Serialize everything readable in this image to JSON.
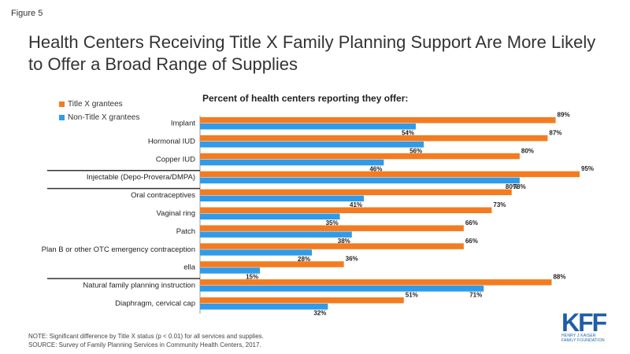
{
  "figure_label": "Figure 5",
  "title": "Health Centers Receiving Title X Family Planning Support Are More Likely to Offer a Broad Range of Supplies",
  "colors": {
    "title_x": "#F47B20",
    "non_title_x": "#2F9BEA",
    "divider": "#333333"
  },
  "chart_data": {
    "type": "bar",
    "orientation": "horizontal",
    "title": "Percent of health centers reporting they offer:",
    "categories": [
      "Implant",
      "Hormonal IUD",
      "Copper IUD",
      "Injectable (Depo-Provera/DMPA)",
      "Oral contraceptives",
      "Vaginal ring",
      "Patch",
      "Plan B or other OTC emergency contraception",
      "ella",
      "Natural family planning instruction",
      "Diaphragm, cervical cap"
    ],
    "series": [
      {
        "name": "Title X grantees",
        "values": [
          89,
          87,
          80,
          95,
          78,
          73,
          66,
          66,
          36,
          88,
          51
        ]
      },
      {
        "name": "Non-Title X grantees",
        "values": [
          54,
          56,
          46,
          80,
          41,
          35,
          38,
          28,
          15,
          71,
          32
        ]
      }
    ],
    "value_suffix": "%",
    "xlim": [
      0,
      100
    ],
    "legend_position": "top-left",
    "group_dividers_after": [
      2,
      3,
      8
    ]
  },
  "notes": [
    "NOTE: Significant difference  by Title X  status (p < 0.01) for all services and supplies.",
    "SOURCE: Survey of Family Planning Services  in Community Health Centers, 2017."
  ],
  "logo": {
    "mark": "KFF",
    "line1": "HENRY J KAISER",
    "line2": "FAMILY FOUNDATION"
  }
}
